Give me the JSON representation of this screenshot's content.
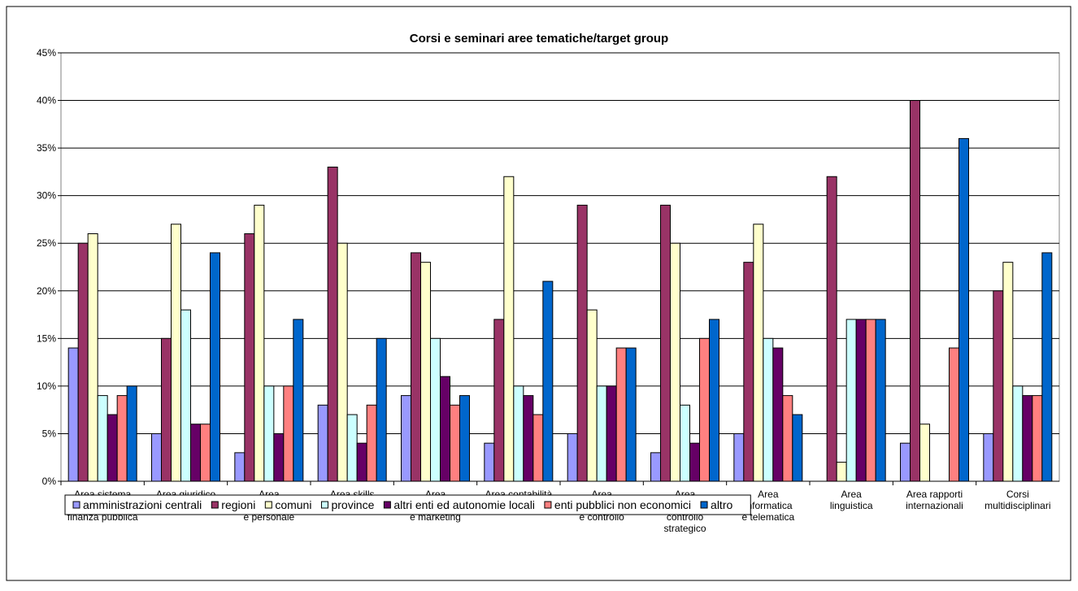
{
  "chart_data": {
    "type": "bar",
    "title": "Corsi e seminari aree tematiche/target group",
    "categories": [
      "Area sistema\neconomico e\nfinanza pubblica",
      "Area giuridico\nnormativa",
      "Area\norganizz.ne\ne personale",
      "Area skills\nmanageriali",
      "Area\nComunicazione\ne marketing",
      "Area contabilità\ne finanza",
      "Area\nProgram.ne\ne controllo",
      "Area\npianificazione\ncontrollo\nstrategico",
      "Area\nInformatica\ne telematica",
      "Area\nlinguistica",
      "Area rapporti\ninternazionali",
      "Corsi\nmultidisciplinari"
    ],
    "series": [
      {
        "name": "amministrazioni centrali",
        "color": "#9999FF",
        "values": [
          14,
          5,
          3,
          8,
          9,
          4,
          5,
          3,
          5,
          0,
          4,
          5
        ]
      },
      {
        "name": "regioni",
        "color": "#993366",
        "values": [
          25,
          15,
          26,
          33,
          24,
          17,
          29,
          29,
          23,
          32,
          40,
          20
        ]
      },
      {
        "name": "comuni",
        "color": "#FFFFCC",
        "values": [
          26,
          27,
          29,
          25,
          23,
          32,
          18,
          25,
          27,
          2,
          6,
          23
        ]
      },
      {
        "name": "province",
        "color": "#CCFFFF",
        "values": [
          9,
          18,
          10,
          7,
          15,
          10,
          10,
          8,
          15,
          17,
          0,
          10
        ]
      },
      {
        "name": "altri enti ed autonomie locali",
        "color": "#660066",
        "values": [
          7,
          6,
          5,
          4,
          11,
          9,
          10,
          4,
          14,
          17,
          0,
          9
        ]
      },
      {
        "name": "enti pubblici non economici",
        "color": "#FF8080",
        "values": [
          9,
          6,
          10,
          8,
          8,
          7,
          14,
          15,
          9,
          17,
          14,
          9
        ]
      },
      {
        "name": "altro",
        "color": "#0066CC",
        "values": [
          10,
          24,
          17,
          15,
          9,
          21,
          14,
          17,
          7,
          17,
          36,
          24
        ]
      }
    ],
    "ylim": [
      0,
      45
    ],
    "yticks": [
      {
        "value": 0,
        "label": "0%"
      },
      {
        "value": 5,
        "label": "5%"
      },
      {
        "value": 10,
        "label": "10%"
      },
      {
        "value": 15,
        "label": "15%"
      },
      {
        "value": 20,
        "label": "20%"
      },
      {
        "value": 25,
        "label": "25%"
      },
      {
        "value": 30,
        "label": "30%"
      },
      {
        "value": 35,
        "label": "35%"
      },
      {
        "value": 40,
        "label": "40%"
      },
      {
        "value": 45,
        "label": "45%"
      }
    ],
    "grid": true,
    "legend": "bottom"
  }
}
